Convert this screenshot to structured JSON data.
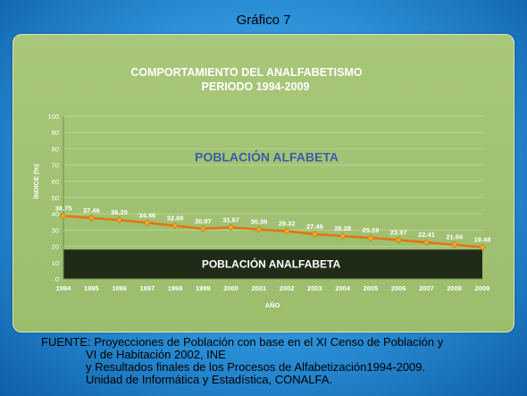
{
  "slide": {
    "title": "Gráfico 7"
  },
  "chart_data": {
    "type": "line",
    "title": "COMPORTAMIENTO DEL ANALFABETISMO",
    "subtitle": "PERIODO 1994-2009",
    "xlabel": "AÑO",
    "ylabel": "ÍNDICE (%)",
    "ylim": [
      0,
      100
    ],
    "yticks": [
      0,
      10,
      20,
      30,
      40,
      50,
      60,
      70,
      80,
      90,
      100
    ],
    "grid": true,
    "categories": [
      "1994",
      "1995",
      "1996",
      "1997",
      "1998",
      "1999",
      "2000",
      "2001",
      "2002",
      "2003",
      "2004",
      "2005",
      "2006",
      "2007",
      "2008",
      "2009"
    ],
    "values": [
      38.75,
      37.46,
      36.2,
      34.46,
      32.68,
      30.87,
      31.67,
      30.36,
      29.32,
      27.49,
      26.28,
      25.19,
      23.97,
      22.41,
      21.04,
      19.48
    ],
    "value_labels": [
      "38.75",
      "37.46",
      "36.20",
      "34.46",
      "32.68",
      "30.87",
      "31.67",
      "30.36",
      "29.32",
      "27.49",
      "26.28",
      "25.19",
      "23.97",
      "22.41",
      "21.04",
      "19.48"
    ],
    "regions": {
      "upper_label": "POBLACIÓN ALFABETA",
      "upper_label_y": 75,
      "lower_label": "POBLACIÓN ANALFABETA",
      "lower_band_top": 18
    },
    "colors": {
      "line": "#e8720c",
      "marker": "#f5a623",
      "lower_band": "#1f2a17",
      "upper_text": "#3a5fa8",
      "grid": "#b9d394"
    }
  },
  "source": {
    "lines": [
      "FUENTE: Proyecciones de Población con base en el XI Censo de Población y",
      "VI de Habitación 2002, INE",
      "y Resultados finales de los Procesos de Alfabetización1994-2009.",
      "Unidad de Informática y Estadística, CONALFA."
    ]
  }
}
